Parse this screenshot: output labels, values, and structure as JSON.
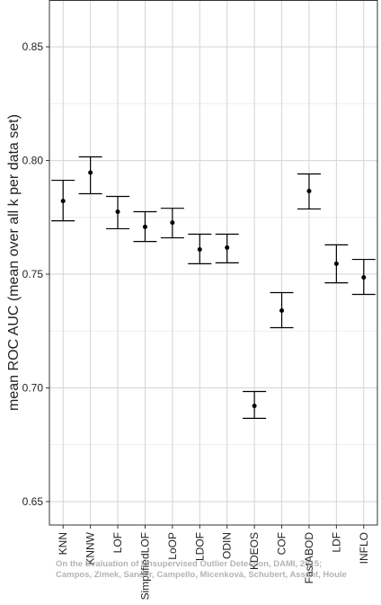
{
  "chart_data": {
    "type": "errorbar",
    "y_label": "mean ROC AUC (mean over all k per data set)",
    "categories": [
      "KNN",
      "KNNW",
      "LOF",
      "SimplifiedLOF",
      "LoOP",
      "LDOF",
      "ODIN",
      "KDEOS",
      "COF",
      "FastABOD",
      "LDF",
      "INFLO"
    ],
    "values": [
      0.7822,
      0.7947,
      0.7775,
      0.7708,
      0.7727,
      0.7609,
      0.7617,
      0.6921,
      0.734,
      0.7866,
      0.7546,
      0.7486
    ],
    "lower": [
      0.7735,
      0.7854,
      0.77,
      0.7644,
      0.766,
      0.7546,
      0.755,
      0.6866,
      0.7265,
      0.7787,
      0.7462,
      0.7411
    ],
    "upper": [
      0.7913,
      0.8016,
      0.7842,
      0.7775,
      0.779,
      0.7676,
      0.7676,
      0.6984,
      0.7419,
      0.7941,
      0.7629,
      0.7565
    ],
    "color": "#000000",
    "ylim": [
      0.6397,
      0.8706
    ],
    "yticks": [
      {
        "value": 0.65,
        "label": "0.65"
      },
      {
        "value": 0.7,
        "label": "0.70"
      },
      {
        "value": 0.75,
        "label": "0.75"
      },
      {
        "value": 0.8,
        "label": "0.80"
      },
      {
        "value": 0.85,
        "label": "0.85"
      }
    ],
    "grid": true,
    "annotation_lines": [
      "On the Evaluation of Unsupervised Outlier Detection, DAMI, 2015;",
      "Campos, Zimek, Sander, Campello, Micenková, Schubert, Assent, Houle"
    ]
  }
}
